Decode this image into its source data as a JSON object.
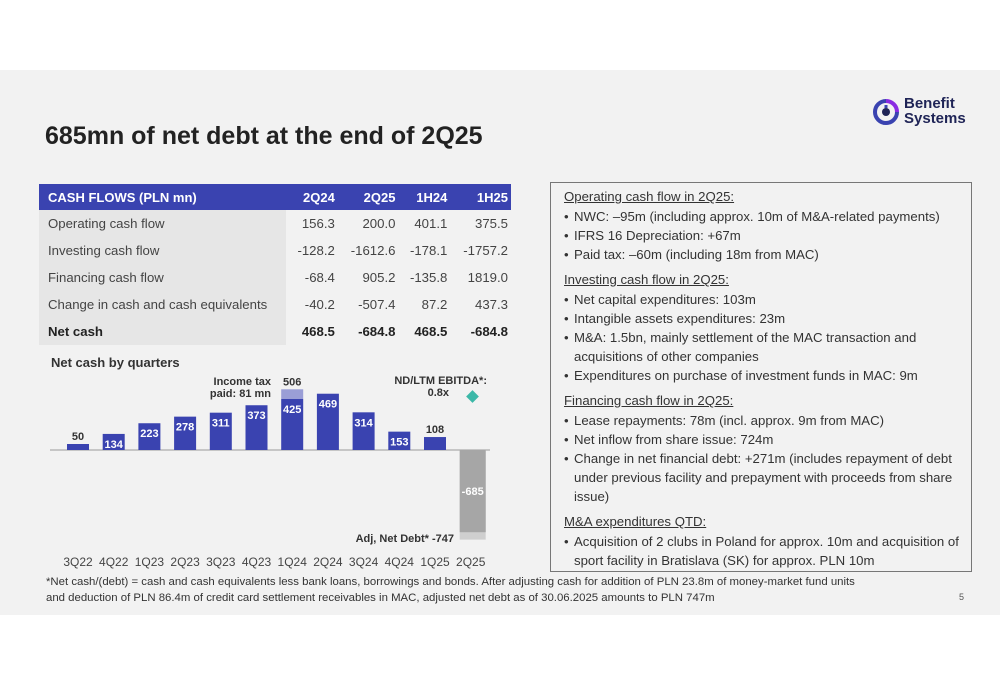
{
  "brand": {
    "logo_line1": "Benefit",
    "logo_line2": "Systems",
    "icon_name": "benefit-systems-logo-icon",
    "accent": "#3a43b0",
    "accent_light": "#9a9ed6",
    "teal": "#3cb8a8"
  },
  "title": "685mn of net debt at the end of 2Q25",
  "table": {
    "headers": [
      "CASH FLOWS (PLN mn)",
      "2Q24",
      "2Q25",
      "1H24",
      "1H25"
    ],
    "rows": [
      {
        "label": "Operating cash flow",
        "v": [
          "156.3",
          "200.0",
          "401.1",
          "375.5"
        ]
      },
      {
        "label": "Investing cash flow",
        "v": [
          "-128.2",
          "-1612.6",
          "-178.1",
          "-1757.2"
        ]
      },
      {
        "label": "Financing cash flow",
        "v": [
          "-68.4",
          "905.2",
          "-135.8",
          "1819.0"
        ]
      },
      {
        "label": "Change in cash and cash equivalents",
        "v": [
          "-40.2",
          "-507.4",
          "87.2",
          "437.3"
        ]
      },
      {
        "label": "Net cash",
        "v": [
          "468.5",
          "-684.8",
          "468.5",
          "-684.8"
        ]
      }
    ]
  },
  "notes": [
    {
      "title": "Operating cash flow in 2Q25:",
      "items": [
        "NWC: –95m (including approx. 10m of M&A-related payments)",
        "IFRS 16 Depreciation: +67m",
        "Paid tax: –60m (including 18m from MAC)"
      ]
    },
    {
      "title": "Investing cash flow in 2Q25:",
      "items": [
        "Net capital expenditures: 103m",
        "Intangible assets expenditures: 23m",
        "M&A: 1.5bn, mainly settlement of the MAC transaction and acquisitions of other companies",
        "Expenditures on purchase of investment funds in MAC: 9m"
      ]
    },
    {
      "title": "Financing cash flow in 2Q25:",
      "items": [
        "Lease repayments: 78m (incl. approx. 9m from MAC)",
        "Net inflow from share issue: 724m",
        "Change in net financial debt: +271m (includes repayment of debt under previous facility and prepayment with proceeds from share issue)"
      ]
    },
    {
      "title": "M&A expenditures QTD:",
      "items": [
        "Acquisition of 2 clubs in Poland for approx. 10m and acquisition of sport facility in Bratislava (SK) for approx. PLN 10m"
      ]
    }
  ],
  "chart_data": {
    "type": "bar",
    "title": "Net cash by quarters",
    "categories": [
      "3Q22",
      "4Q22",
      "1Q23",
      "2Q23",
      "3Q23",
      "4Q23",
      "1Q24",
      "2Q24",
      "3Q24",
      "4Q24",
      "1Q25",
      "2Q25"
    ],
    "values": [
      50,
      134,
      223,
      278,
      311,
      373,
      425,
      469,
      314,
      153,
      108,
      -685
    ],
    "value_labels": [
      "50",
      "134",
      "223",
      "278",
      "311",
      "373",
      "425",
      "469",
      "314",
      "153",
      "108",
      "-685"
    ],
    "stacked_extra": {
      "category": "1Q24",
      "value": 81,
      "total_label": "506"
    },
    "adjusted": {
      "category": "2Q25",
      "value": -747
    },
    "annotations": {
      "income_tax": "Income tax paid: 81 mn",
      "nd_ebitda_label": "ND/LTM EBITDA*:",
      "nd_ebitda_value": "0.8x",
      "adj_net_debt": "Adj, Net Debt* -747"
    },
    "colors": {
      "positive": "#3a43b0",
      "tax": "#9a9ed6",
      "negative": "#a6a6a6",
      "negative_adj": "#cfcfcf",
      "marker": "#3cb8a8"
    }
  },
  "footnote": {
    "line1": "*Net cash/(debt) = cash and cash equivalents less bank loans, borrowings and bonds. After adjusting cash for addition of PLN 23.8m of money-market fund units",
    "line2": "and deduction of PLN 86.4m of credit card settlement receivables in MAC, adjusted net debt as of 30.06.2025 amounts to PLN 747m"
  },
  "page_number": "5"
}
